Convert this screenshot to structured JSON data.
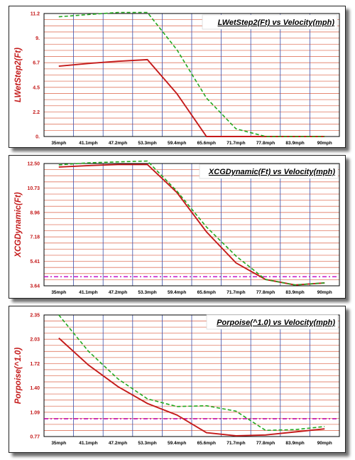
{
  "chart_data": [
    {
      "type": "line",
      "title": "LWetStep2(Ft) vs Velocity(mph)",
      "xlabel": "",
      "ylabel": "LWetStep2(Ft)",
      "categories": [
        "35mph",
        "41.1mph",
        "47.2mph",
        "53.3mph",
        "59.4mph",
        "65.6mph",
        "71.7mph",
        "77.8mph",
        "83.9mph",
        "90mph"
      ],
      "yticks": [
        "11.2",
        "9.",
        "6.7",
        "4.5",
        "2.2",
        "0."
      ],
      "ylim": [
        0,
        11.2
      ],
      "grid": true,
      "series": [
        {
          "values": [
            6.4,
            6.65,
            6.85,
            7.0,
            3.9,
            0.0,
            0.0,
            0.0,
            0.0,
            0.0
          ],
          "color": "#c41a1a",
          "style": "solid"
        },
        {
          "values": [
            10.9,
            11.1,
            11.3,
            11.3,
            7.9,
            3.5,
            0.7,
            0.0,
            0.0,
            0.0
          ],
          "color": "#22a81e",
          "style": "dashed"
        }
      ]
    },
    {
      "type": "line",
      "title": "XCGDynamic(Ft) vs Velocity(mph)",
      "xlabel": "",
      "ylabel": "XCGDynamic(Ft)",
      "categories": [
        "35mph",
        "41.1mph",
        "47.2mph",
        "53.3mph",
        "59.4mph",
        "65.6mph",
        "71.7mph",
        "77.8mph",
        "83.9mph",
        "90mph"
      ],
      "yticks": [
        "12.50",
        "10.73",
        "8.96",
        "7.18",
        "5.41",
        "3.64"
      ],
      "ylim": [
        3.64,
        12.5
      ],
      "grid": true,
      "reference_line": {
        "value": 4.3,
        "color": "#c000c0",
        "style": "dashdot"
      },
      "series": [
        {
          "values": [
            12.25,
            12.35,
            12.43,
            12.43,
            10.4,
            7.55,
            5.3,
            4.1,
            3.7,
            3.85
          ],
          "color": "#c41a1a",
          "style": "solid"
        },
        {
          "values": [
            12.4,
            12.55,
            12.62,
            12.68,
            10.5,
            7.9,
            5.8,
            4.1,
            3.7,
            3.85
          ],
          "color": "#22a81e",
          "style": "dashed"
        }
      ]
    },
    {
      "type": "line",
      "title": "Porpoise(^1.0) vs Velocity(mph)",
      "xlabel": "",
      "ylabel": "Porpoise(^1.0)",
      "categories": [
        "35mph",
        "41.1mph",
        "47.2mph",
        "53.3mph",
        "59.4mph",
        "65.6mph",
        "71.7mph",
        "77.8mph",
        "83.9mph",
        "90mph"
      ],
      "yticks": [
        "2.35",
        "2.03",
        "1.72",
        "1.40",
        "1.09",
        "0.77"
      ],
      "ylim": [
        0.77,
        2.35
      ],
      "grid": true,
      "reference_line": {
        "value": 1.0,
        "color": "#c000c0",
        "style": "dashdot"
      },
      "series": [
        {
          "values": [
            2.05,
            1.7,
            1.42,
            1.2,
            1.05,
            0.82,
            0.78,
            0.79,
            0.83,
            0.87
          ],
          "color": "#c41a1a",
          "style": "solid"
        },
        {
          "values": [
            2.35,
            1.88,
            1.52,
            1.26,
            1.16,
            1.17,
            1.1,
            0.85,
            0.86,
            0.9
          ],
          "color": "#22a81e",
          "style": "dashed"
        }
      ]
    }
  ]
}
